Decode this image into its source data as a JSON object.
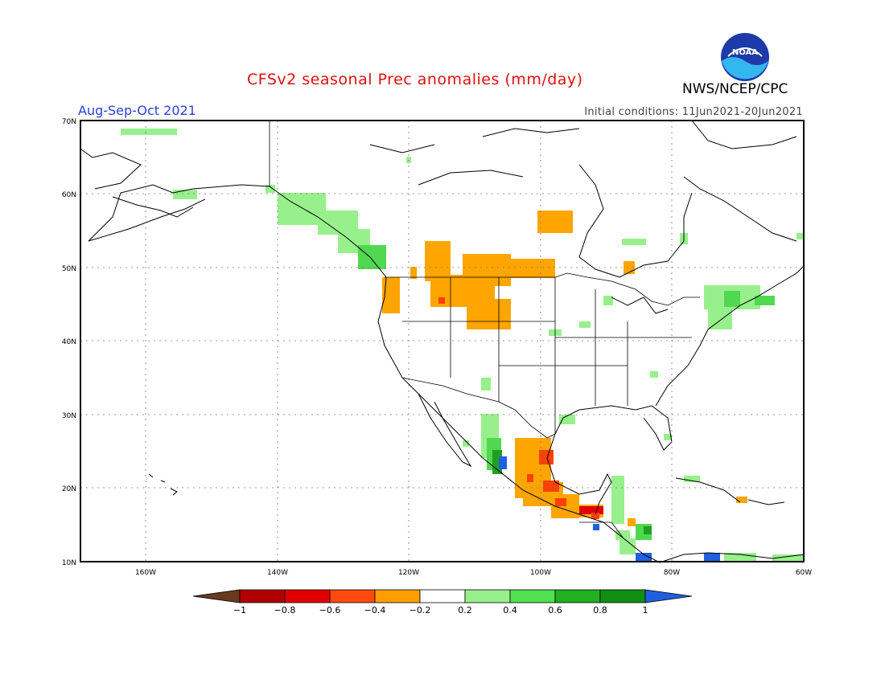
{
  "header": {
    "title": "CFSv2 seasonal Prec anomalies (mm/day)",
    "org": "NWS/NCEP/CPC",
    "season": "Aug-Sep-Oct 2021",
    "init_conditions": "Initial conditions: 11Jun2021-20Jun2021",
    "logo_text": "NOAA"
  },
  "axes": {
    "lat_labels": [
      "70N",
      "60N",
      "50N",
      "40N",
      "30N",
      "20N",
      "10N"
    ],
    "lon_labels": [
      "160W",
      "140W",
      "120W",
      "100W",
      "80W",
      "60W"
    ]
  },
  "colorbar": {
    "labels": [
      "-1",
      "-0.8",
      "-0.6",
      "-0.4",
      "-0.2",
      "0.2",
      "0.4",
      "0.6",
      "0.8",
      "1"
    ],
    "colors": [
      "#6b3a1e",
      "#b00000",
      "#e00000",
      "#ff4a10",
      "#ff9e00",
      "#ffffff",
      "#98f08c",
      "#50e050",
      "#20b020",
      "#109010",
      "#2060e0"
    ]
  }
}
